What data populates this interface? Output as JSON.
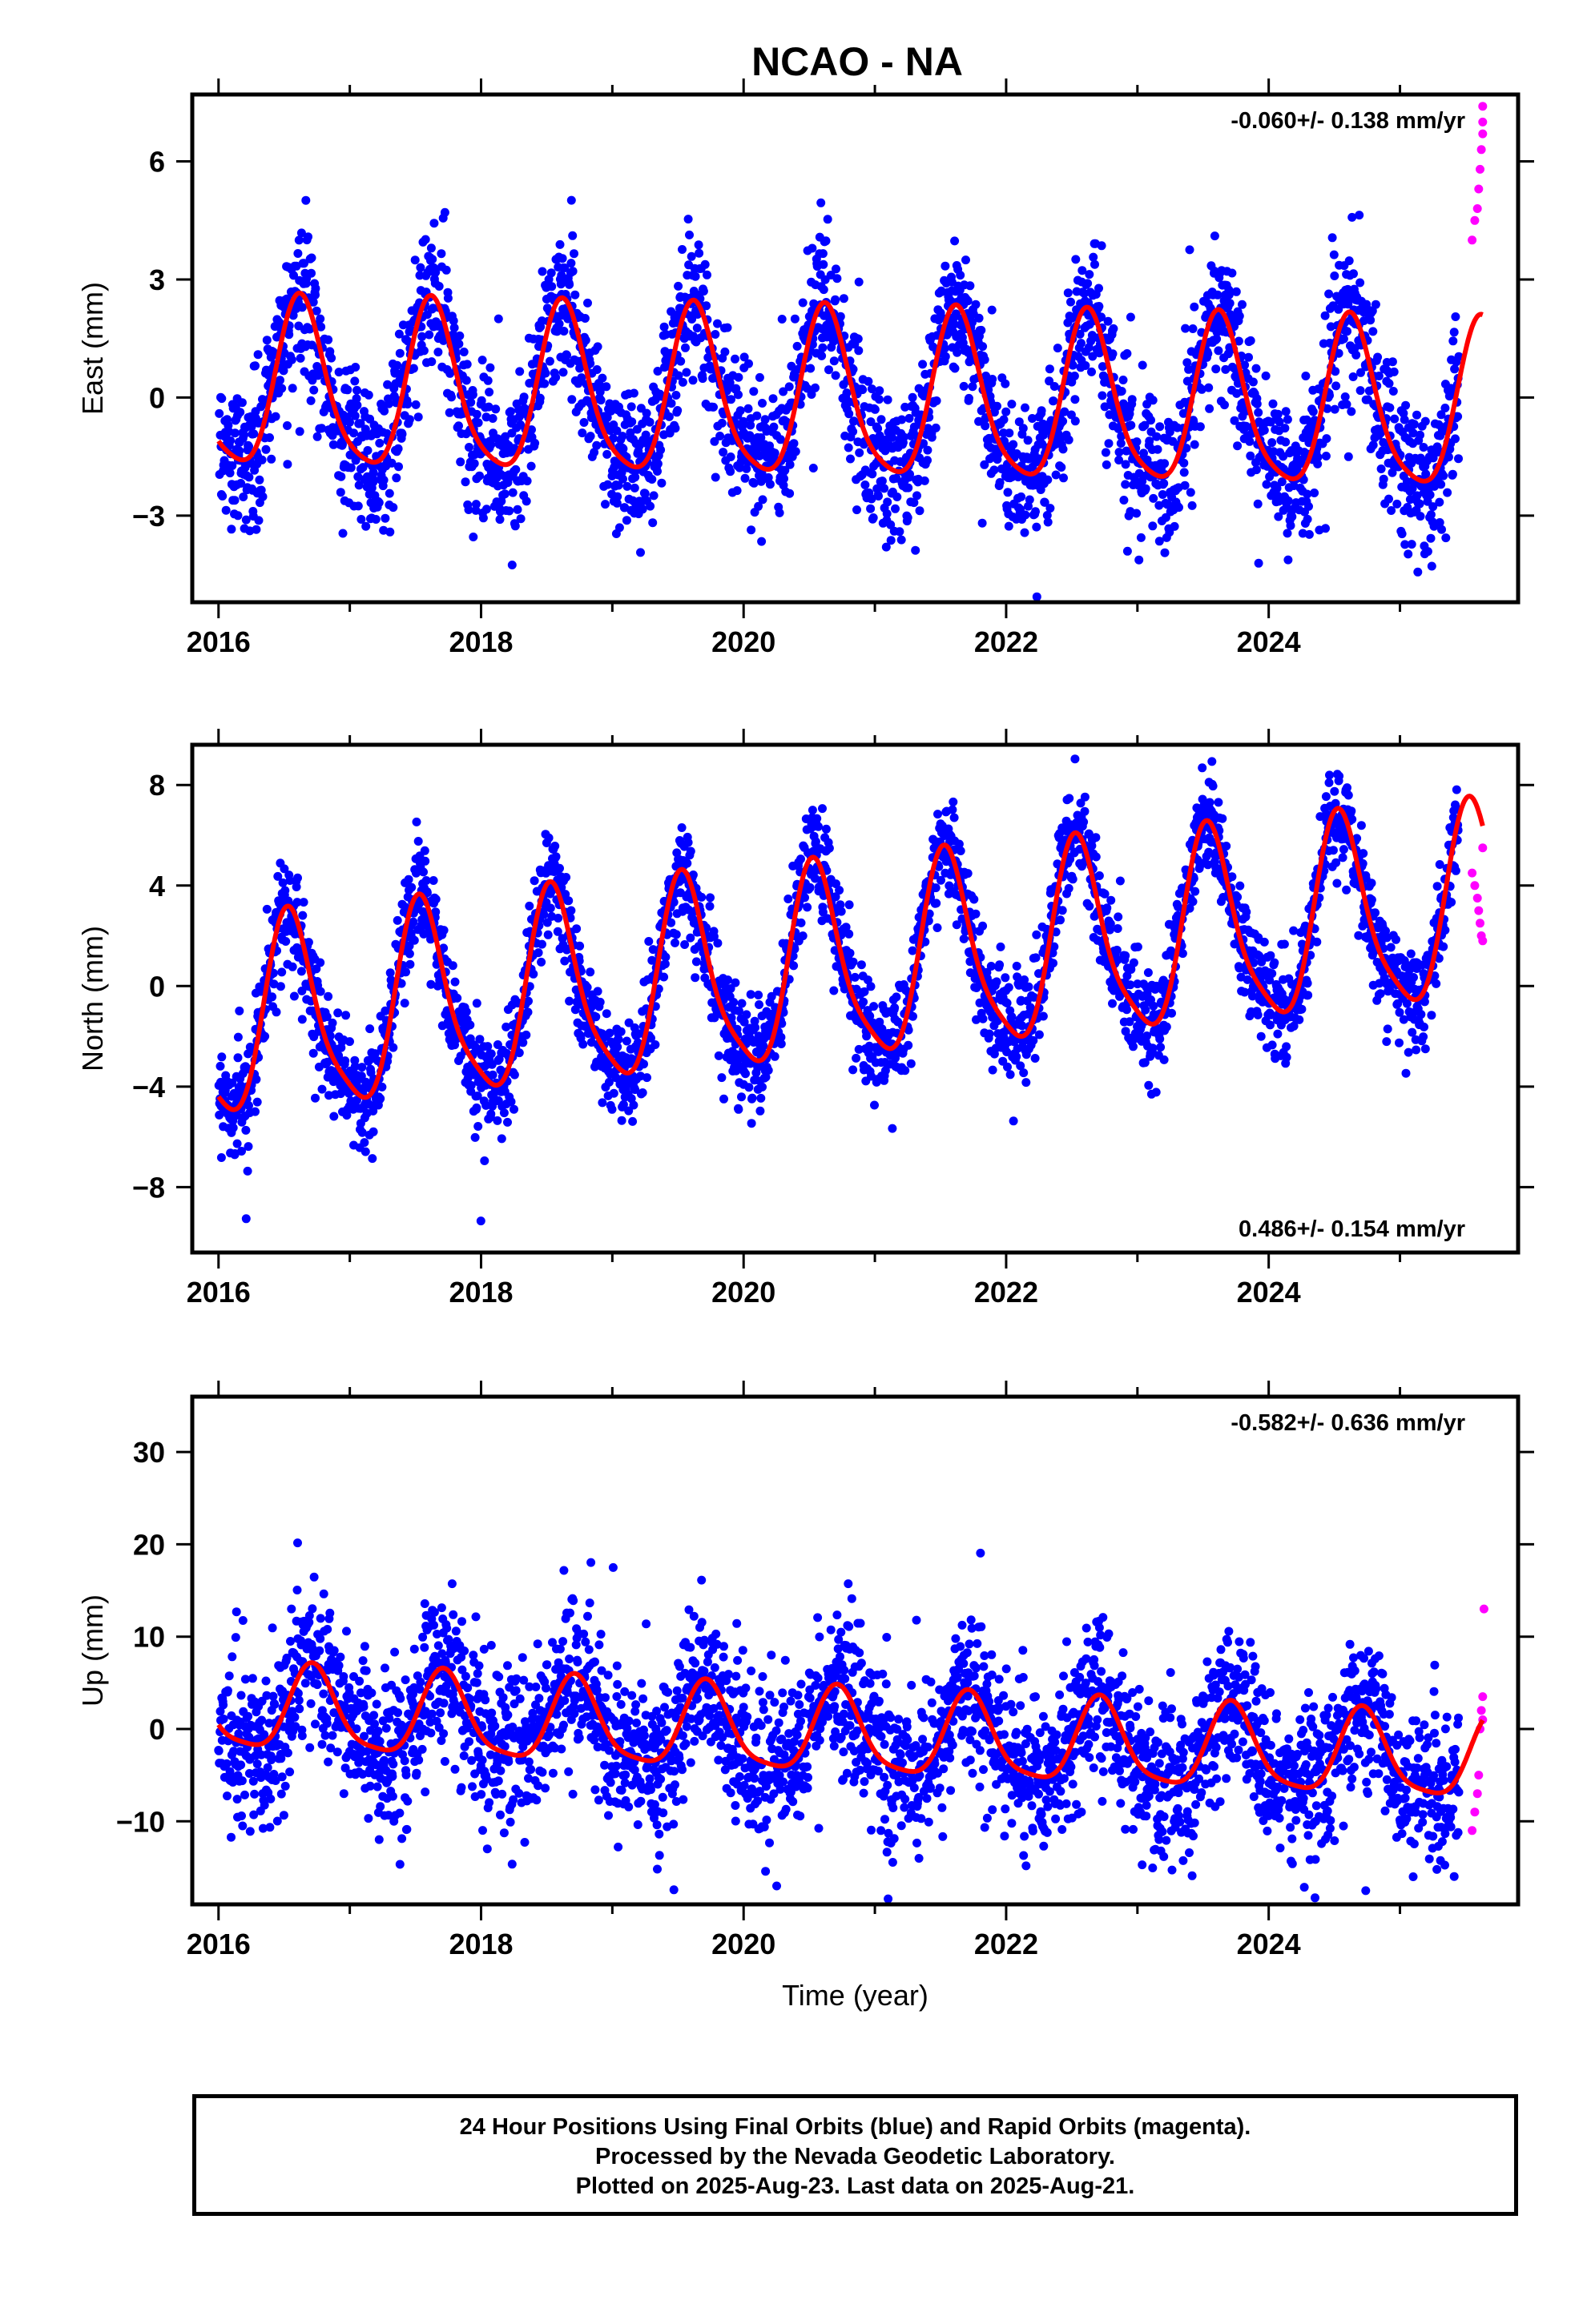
{
  "title": "NCAO - NA",
  "colors": {
    "final": "#0000ff",
    "rapid": "#ff00ff",
    "fit": "#ff0000"
  },
  "xlabel": "Time (year)",
  "footer": {
    "line1": "24 Hour Positions Using Final Orbits (blue) and Rapid Orbits (magenta).",
    "line2": "Processed by the Nevada Geodetic Laboratory.",
    "line3": "Plotted on 2025-Aug-23. Last data on 2025-Aug-21."
  },
  "chart_data": [
    {
      "type": "scatter",
      "ylabel": "East (mm)",
      "rate_label": "-0.060+/- 0.138 mm/yr",
      "xlim": [
        2015.8,
        2025.9
      ],
      "ylim": [
        -5.2,
        7.7
      ],
      "x_ticks": [
        2016,
        2018,
        2020,
        2022,
        2024
      ],
      "y_ticks": [
        -3,
        0,
        3,
        6
      ],
      "legend": "none",
      "series": [
        {
          "role": "final",
          "fit": {
            "mean": -0.06,
            "rate": -0.06,
            "amp": 2.1,
            "peak": 0.63,
            "amp2": 0.4,
            "phase2": 0.1
          },
          "noise": 0.9,
          "x_start": 2016.0,
          "x_end": 2025.45
        },
        {
          "role": "rapid",
          "x": [
            2025.55,
            2025.57,
            2025.59,
            2025.6,
            2025.61,
            2025.62,
            2025.63,
            2025.63,
            2025.63
          ],
          "y": [
            4.0,
            4.5,
            4.8,
            5.3,
            5.8,
            6.3,
            6.7,
            7.0,
            7.4
          ]
        }
      ],
      "fit_end": 2025.63
    },
    {
      "type": "scatter",
      "ylabel": "North (mm)",
      "rate_label": "0.486+/- 0.154 mm/yr",
      "xlim": [
        2015.8,
        2025.9
      ],
      "ylim": [
        -10.6,
        9.6
      ],
      "x_ticks": [
        2016,
        2018,
        2020,
        2022,
        2024
      ],
      "y_ticks": [
        -8,
        -4,
        0,
        4,
        8
      ],
      "legend": "none",
      "series": [
        {
          "role": "final",
          "fit": {
            "mean": 0.6,
            "rate": 0.486,
            "amp": 3.8,
            "peak": 0.55,
            "amp2": 0.8,
            "phase2": 0.0
          },
          "noise": 1.0,
          "x_start": 2016.0,
          "x_end": 2025.45
        },
        {
          "role": "rapid",
          "x": [
            2025.55,
            2025.57,
            2025.59,
            2025.6,
            2025.61,
            2025.62,
            2025.63,
            2025.63
          ],
          "y": [
            4.5,
            4.0,
            3.5,
            3.0,
            2.5,
            2.0,
            1.8,
            5.5
          ]
        }
      ],
      "fit_end": 2025.63
    },
    {
      "type": "scatter",
      "ylabel": "Up (mm)",
      "rate_label": "-0.582+/- 0.636 mm/yr",
      "xlim": [
        2015.8,
        2025.9
      ],
      "ylim": [
        -19,
        36
      ],
      "x_ticks": [
        2016,
        2018,
        2020,
        2022,
        2024
      ],
      "y_ticks": [
        -10,
        0,
        10,
        20,
        30
      ],
      "legend": "none",
      "series": [
        {
          "role": "final",
          "fit": {
            "mean": -0.5,
            "rate": -0.582,
            "amp": 4.5,
            "peak": 0.72,
            "amp2": 1.0,
            "phase2": 0.2
          },
          "noise": 4.2,
          "x_start": 2016.0,
          "x_end": 2025.45
        },
        {
          "role": "rapid",
          "x": [
            2025.55,
            2025.57,
            2025.59,
            2025.6,
            2025.61,
            2025.62,
            2025.63,
            2025.63,
            2025.64
          ],
          "y": [
            -11,
            -9,
            -7,
            -5,
            0,
            2,
            3.5,
            1,
            13
          ]
        }
      ],
      "fit_end": 2025.63
    }
  ]
}
